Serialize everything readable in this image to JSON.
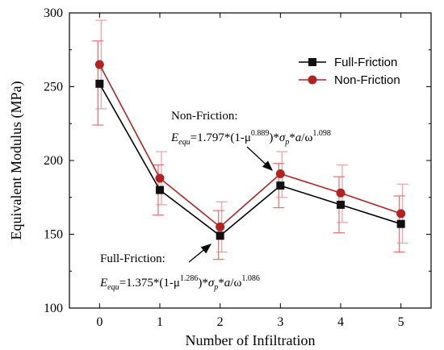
{
  "chart_data": {
    "type": "line",
    "xlabel": "Number of Infiltration",
    "ylabel": "Equivalent Modulus (MPa)",
    "x": [
      0,
      1,
      2,
      3,
      4,
      5
    ],
    "xlim": [
      -0.5,
      5.5
    ],
    "ylim": [
      100,
      300
    ],
    "xticks": [
      "0",
      "1",
      "2",
      "3",
      "4",
      "5"
    ],
    "yticks": [
      "100",
      "150",
      "200",
      "250",
      "300"
    ],
    "grid": false,
    "legend_position": "top-right",
    "series": [
      {
        "name": "Full-Friction",
        "color": "#000000",
        "marker": "square",
        "values": [
          252,
          180,
          149,
          183,
          170,
          157
        ],
        "err_low": [
          224,
          163,
          133,
          168,
          151,
          138
        ],
        "err_high": [
          281,
          197,
          166,
          198,
          189,
          176
        ],
        "err_color": "#ee6b6b"
      },
      {
        "name": "Non-Friction",
        "color": "#b22222",
        "marker": "circle",
        "values": [
          265,
          188,
          155,
          191,
          178,
          164
        ],
        "err_low": [
          235,
          170,
          138,
          175,
          158,
          144
        ],
        "err_high": [
          295,
          206,
          172,
          206,
          197,
          184
        ],
        "err_color": "#e8a0a0"
      }
    ],
    "annotations": [
      {
        "title": "Non-Friction:",
        "equation": {
          "E": "E",
          "E_sub": "equ",
          "part1": "=1.797*(1-μ",
          "exp1": "0.889",
          "part2": ")*",
          "sigma": "σ",
          "sigma_sub": "p",
          "part3": "*",
          "a": "a",
          "part4": "/ω",
          "exp2": "1.098"
        },
        "arrow_to": {
          "x": 3,
          "y": 191
        }
      },
      {
        "title": "Full-Friction:",
        "equation": {
          "E": "E",
          "E_sub": "equ",
          "part1": "=1.375*(1-μ",
          "exp1": "1.286",
          "part2": ")*",
          "sigma": "σ",
          "sigma_sub": "p",
          "part3": "*",
          "a": "a",
          "part4": "/ω",
          "exp2": "1.086"
        },
        "arrow_to": {
          "x": 2,
          "y": 149
        }
      }
    ]
  }
}
